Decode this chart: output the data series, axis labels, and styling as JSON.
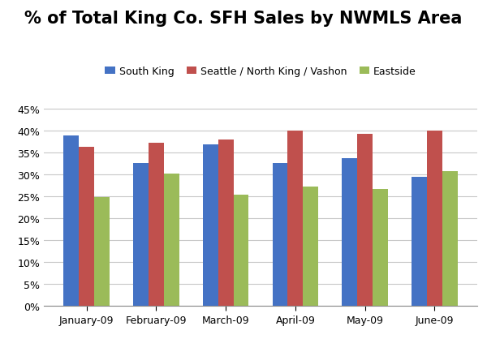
{
  "title": "% of Total King Co. SFH Sales by NWMLS Area",
  "categories": [
    "January-09",
    "February-09",
    "March-09",
    "April-09",
    "May-09",
    "June-09"
  ],
  "series": [
    {
      "name": "South King",
      "color": "#4472C4",
      "values": [
        0.389,
        0.327,
        0.369,
        0.326,
        0.338,
        0.295
      ]
    },
    {
      "name": "Seattle / North King / Vashon",
      "color": "#C0504D",
      "values": [
        0.364,
        0.373,
        0.38,
        0.4,
        0.393,
        0.401
      ]
    },
    {
      "name": "Eastside",
      "color": "#9BBB59",
      "values": [
        0.248,
        0.303,
        0.254,
        0.273,
        0.267,
        0.308
      ]
    }
  ],
  "ylim": [
    0,
    0.475
  ],
  "yticks": [
    0.0,
    0.05,
    0.1,
    0.15,
    0.2,
    0.25,
    0.3,
    0.35,
    0.4,
    0.45
  ],
  "background_color": "#FFFFFF",
  "grid_color": "#C8C8C8",
  "title_fontsize": 15,
  "legend_fontsize": 9,
  "tick_fontsize": 9,
  "bar_width": 0.22
}
